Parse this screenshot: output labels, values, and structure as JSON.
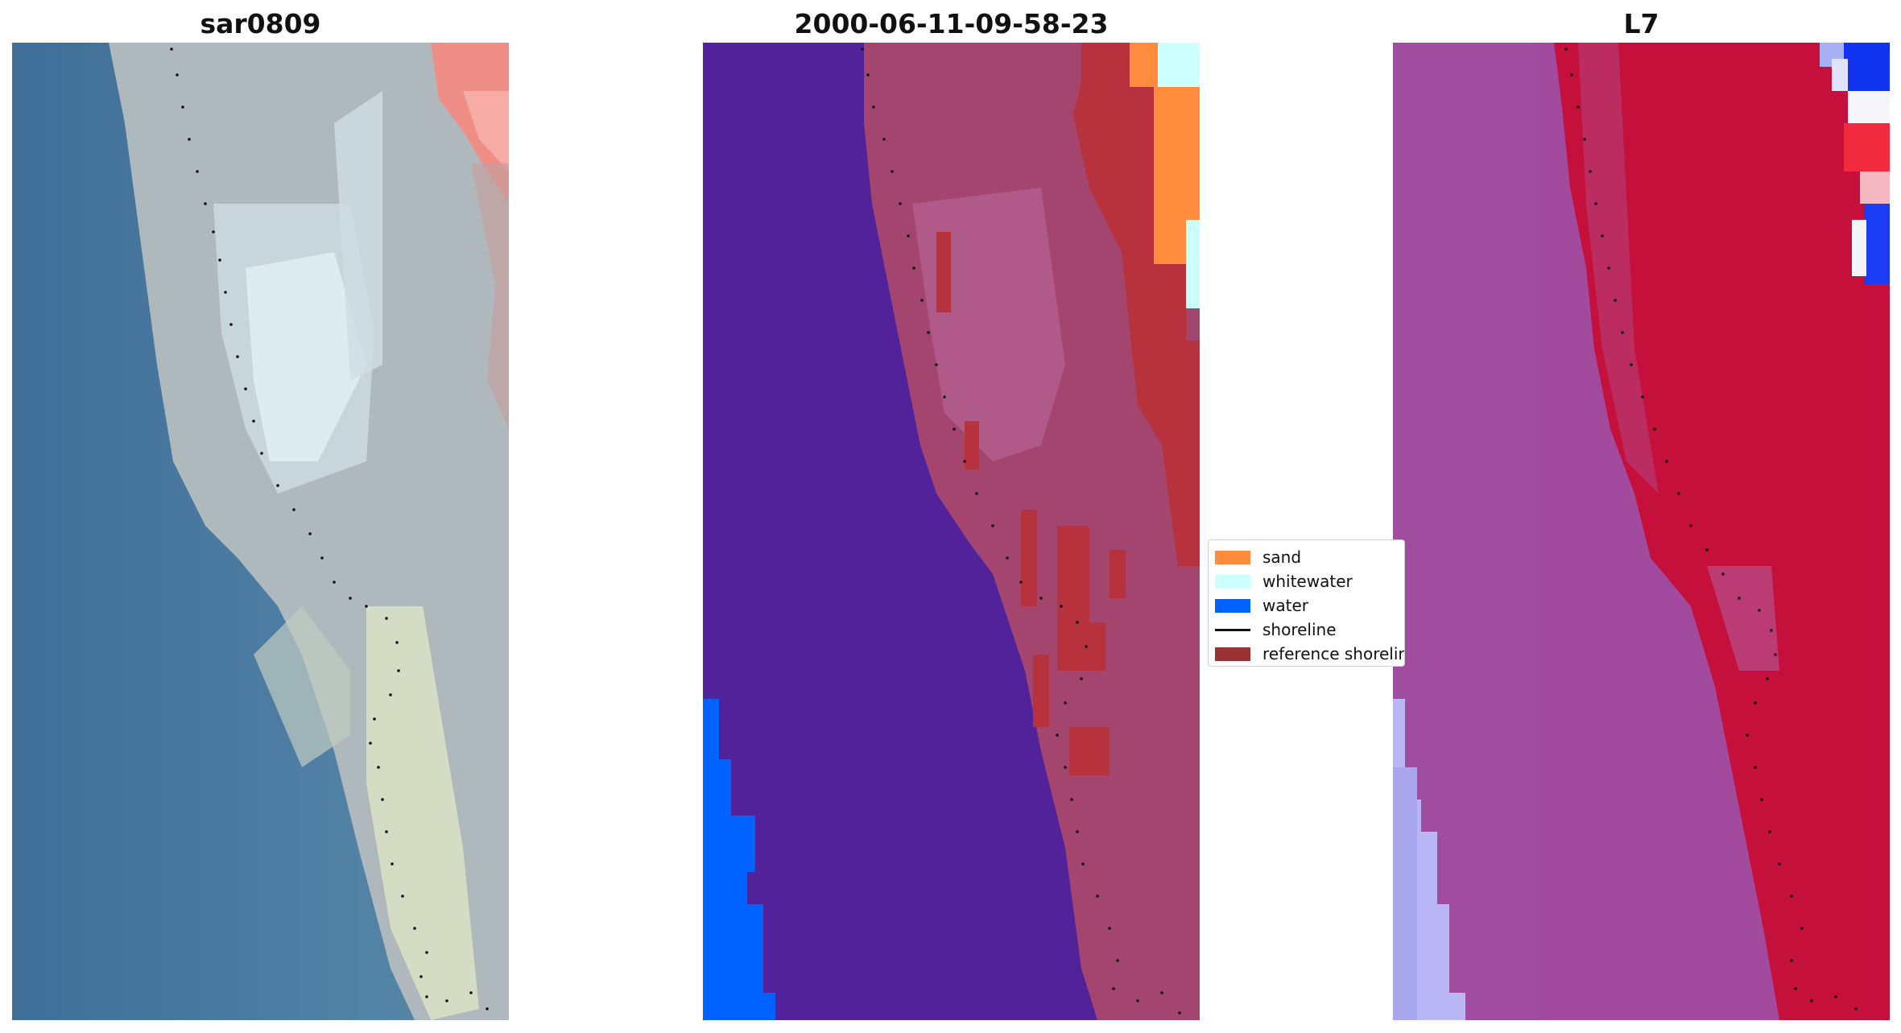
{
  "panels": [
    {
      "title": "sar0809"
    },
    {
      "title": "2000-06-11-09-58-23"
    },
    {
      "title": "L7"
    }
  ],
  "legend": {
    "items": [
      {
        "label": "sand",
        "color": "#ff8c3c",
        "kind": "patch"
      },
      {
        "label": "whitewater",
        "color": "#ccffff",
        "kind": "patch"
      },
      {
        "label": "water",
        "color": "#0062ff",
        "kind": "patch"
      },
      {
        "label": "shoreline",
        "color": "#111111",
        "kind": "line"
      },
      {
        "label": "reference shoreline",
        "color": "#9a3333",
        "kind": "patch"
      }
    ]
  },
  "colors": {
    "rgb_water": "#4a7aa0",
    "rgb_land": "#b9c0c4",
    "rgb_whitewater": "#dff3f5",
    "rgb_red_corner": "#f3a09a",
    "class_water_bg": "#52229a",
    "class_land": "#a3456f",
    "class_reference": "#b7323c",
    "mndwi_water": "#a24a9e",
    "mndwi_land": "#c4103a",
    "mndwi_pale": "#b8b6f4"
  }
}
